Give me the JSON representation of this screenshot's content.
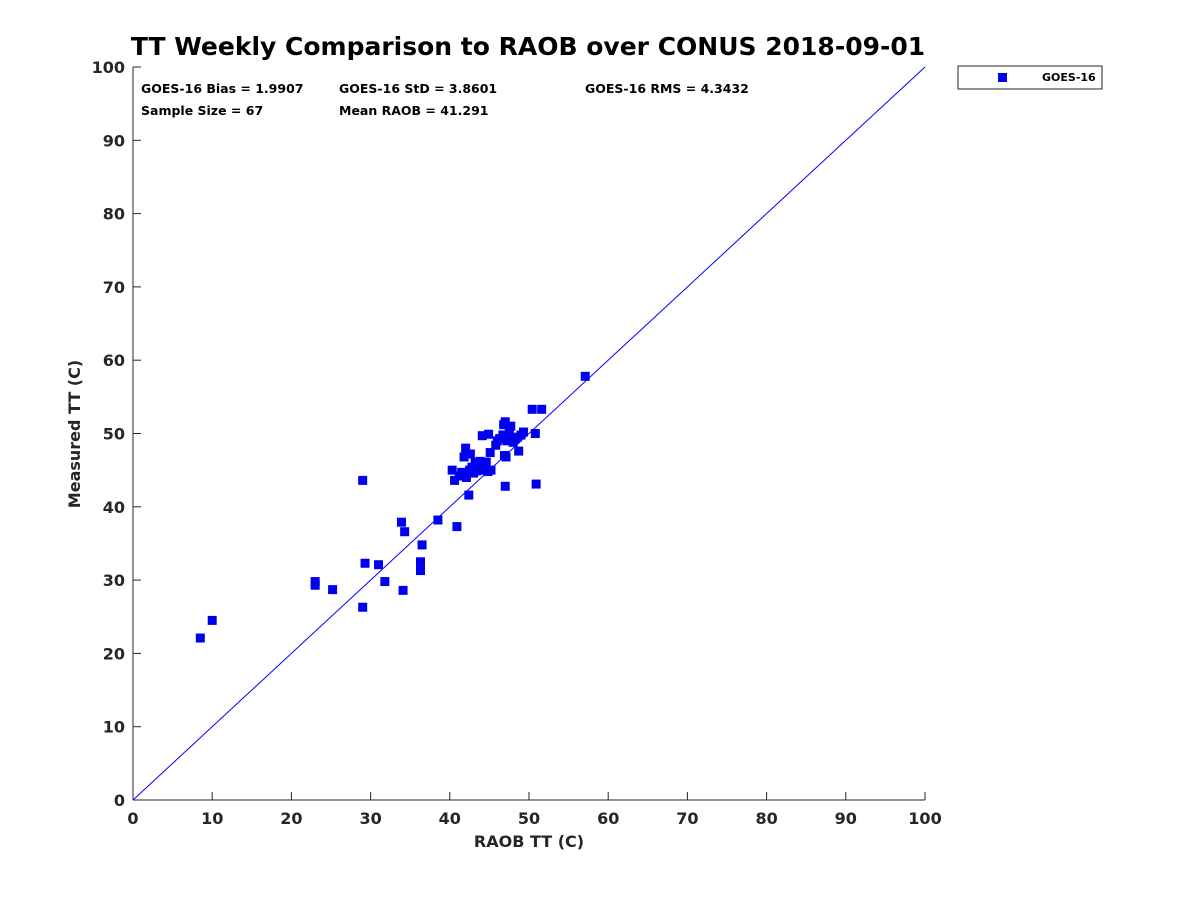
{
  "chart_data": {
    "type": "scatter",
    "title": "TT Weekly Comparison to RAOB over CONUS 2018-09-01",
    "xlabel": "RAOB TT (C)",
    "ylabel": "Measured TT (C)",
    "xlim": [
      0,
      100
    ],
    "ylim": [
      0,
      100
    ],
    "xticks": [
      0,
      10,
      20,
      30,
      40,
      50,
      60,
      70,
      80,
      90,
      100
    ],
    "yticks": [
      0,
      10,
      20,
      30,
      40,
      50,
      60,
      70,
      80,
      90,
      100
    ],
    "grid": false,
    "legend_position": "outside-top-right",
    "reference_line": {
      "from": [
        0,
        0
      ],
      "to": [
        100,
        100
      ],
      "color": "#0000ff"
    },
    "stats": {
      "bias": "GOES-16 Bias = 1.9907",
      "std": "GOES-16 StD = 3.8601",
      "rms": "GOES-16 RMS = 4.3432",
      "sample_size": "Sample Size = 67",
      "mean_raob": "Mean RAOB = 41.291"
    },
    "series": [
      {
        "name": "GOES-16",
        "color": "#0000ee",
        "marker": "square",
        "points": [
          [
            8.5,
            22.1
          ],
          [
            10.0,
            24.5
          ],
          [
            23.0,
            29.3
          ],
          [
            23.0,
            29.8
          ],
          [
            25.2,
            28.7
          ],
          [
            29.0,
            43.6
          ],
          [
            29.3,
            32.3
          ],
          [
            29.0,
            26.3
          ],
          [
            31.0,
            32.1
          ],
          [
            31.8,
            29.8
          ],
          [
            33.9,
            37.9
          ],
          [
            34.3,
            36.6
          ],
          [
            34.1,
            28.6
          ],
          [
            36.3,
            32.5
          ],
          [
            36.5,
            34.8
          ],
          [
            36.3,
            31.3
          ],
          [
            38.5,
            38.2
          ],
          [
            40.3,
            45.0
          ],
          [
            40.6,
            43.6
          ],
          [
            40.9,
            37.3
          ],
          [
            41.2,
            44.2
          ],
          [
            41.5,
            44.7
          ],
          [
            41.8,
            46.8
          ],
          [
            42.0,
            48.0
          ],
          [
            42.1,
            44.0
          ],
          [
            42.4,
            41.6
          ],
          [
            42.5,
            45.0
          ],
          [
            42.6,
            47.2
          ],
          [
            42.8,
            45.4
          ],
          [
            43.0,
            44.6
          ],
          [
            43.2,
            46.0
          ],
          [
            43.4,
            44.9
          ],
          [
            43.6,
            45.3
          ],
          [
            43.8,
            46.2
          ],
          [
            44.0,
            45.0
          ],
          [
            44.1,
            49.7
          ],
          [
            44.3,
            45.8
          ],
          [
            44.8,
            44.8
          ],
          [
            44.9,
            49.9
          ],
          [
            45.1,
            47.4
          ],
          [
            45.8,
            48.4
          ],
          [
            46.3,
            49.3
          ],
          [
            46.7,
            49.8
          ],
          [
            46.8,
            51.2
          ],
          [
            47.0,
            51.6
          ],
          [
            46.9,
            47.0
          ],
          [
            47.0,
            42.8
          ],
          [
            47.1,
            46.8
          ],
          [
            47.2,
            49.0
          ],
          [
            47.5,
            50.0
          ],
          [
            47.7,
            51.0
          ],
          [
            48.0,
            48.8
          ],
          [
            48.3,
            49.3
          ],
          [
            48.7,
            47.6
          ],
          [
            49.0,
            49.8
          ],
          [
            49.3,
            50.2
          ],
          [
            50.4,
            53.3
          ],
          [
            50.8,
            50.0
          ],
          [
            50.9,
            43.1
          ],
          [
            51.6,
            53.3
          ],
          [
            57.1,
            57.8
          ],
          [
            44.6,
            46.1
          ],
          [
            43.5,
            45.6
          ],
          [
            41.9,
            44.4
          ],
          [
            45.2,
            45.0
          ],
          [
            46.0,
            49.0
          ],
          [
            48.5,
            49.5
          ]
        ]
      }
    ]
  }
}
